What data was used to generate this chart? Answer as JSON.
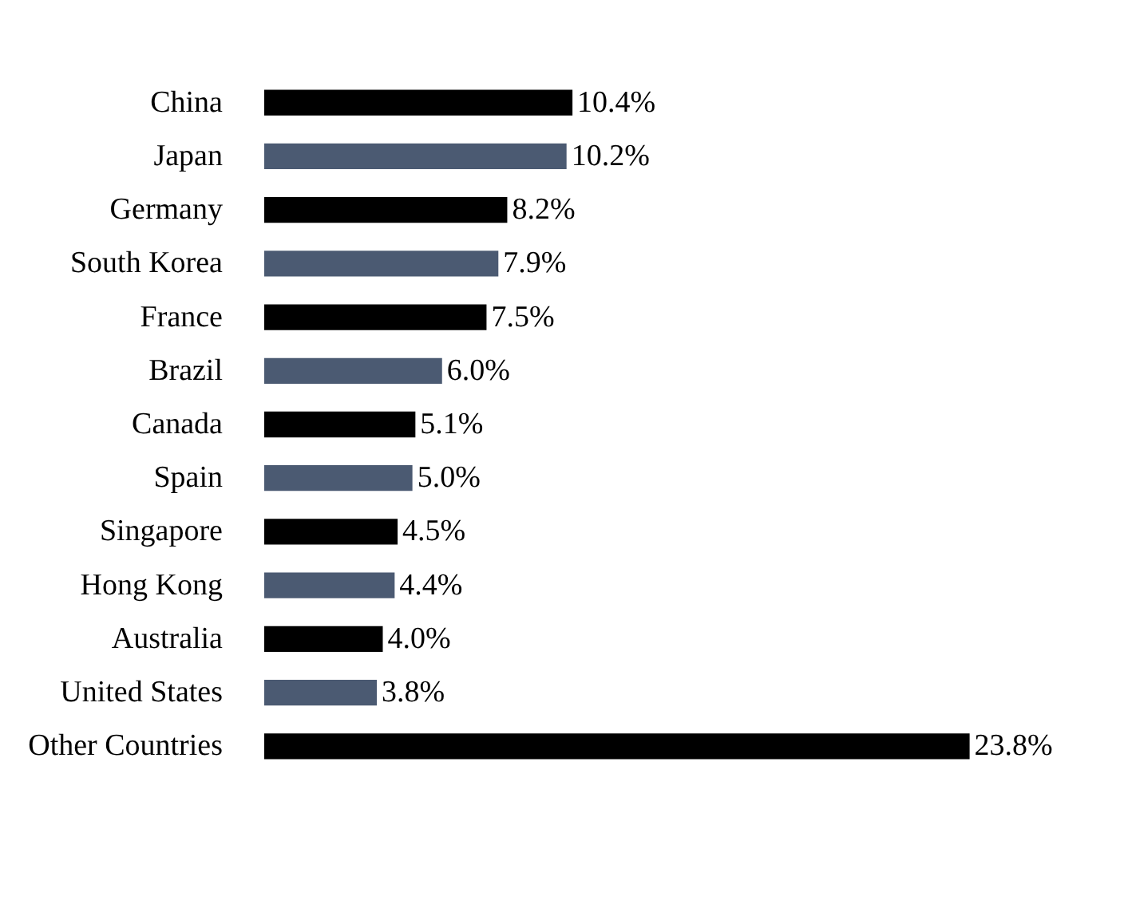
{
  "chart_data": {
    "type": "bar",
    "orientation": "horizontal",
    "categories": [
      "China",
      "Japan",
      "Germany",
      "South Korea",
      "France",
      "Brazil",
      "Canada",
      "Spain",
      "Singapore",
      "Hong Kong",
      "Australia",
      "United States",
      "Other Countries"
    ],
    "values": [
      10.4,
      10.2,
      8.2,
      7.9,
      7.5,
      6.0,
      5.1,
      5.0,
      4.5,
      4.4,
      4.0,
      3.8,
      23.8
    ],
    "colors": [
      "#000000",
      "#4b5a72",
      "#000000",
      "#4b5a72",
      "#000000",
      "#4b5a72",
      "#000000",
      "#4b5a72",
      "#000000",
      "#4b5a72",
      "#000000",
      "#4b5a72",
      "#000000"
    ],
    "value_labels": [
      "10.4%",
      "10.2%",
      "8.2%",
      "7.9%",
      "7.5%",
      "6.0%",
      "5.1%",
      "5.0%",
      "4.5%",
      "4.4%",
      "4.0%",
      "3.8%",
      "23.8%"
    ],
    "tick_labels": "y",
    "grid": false
  }
}
